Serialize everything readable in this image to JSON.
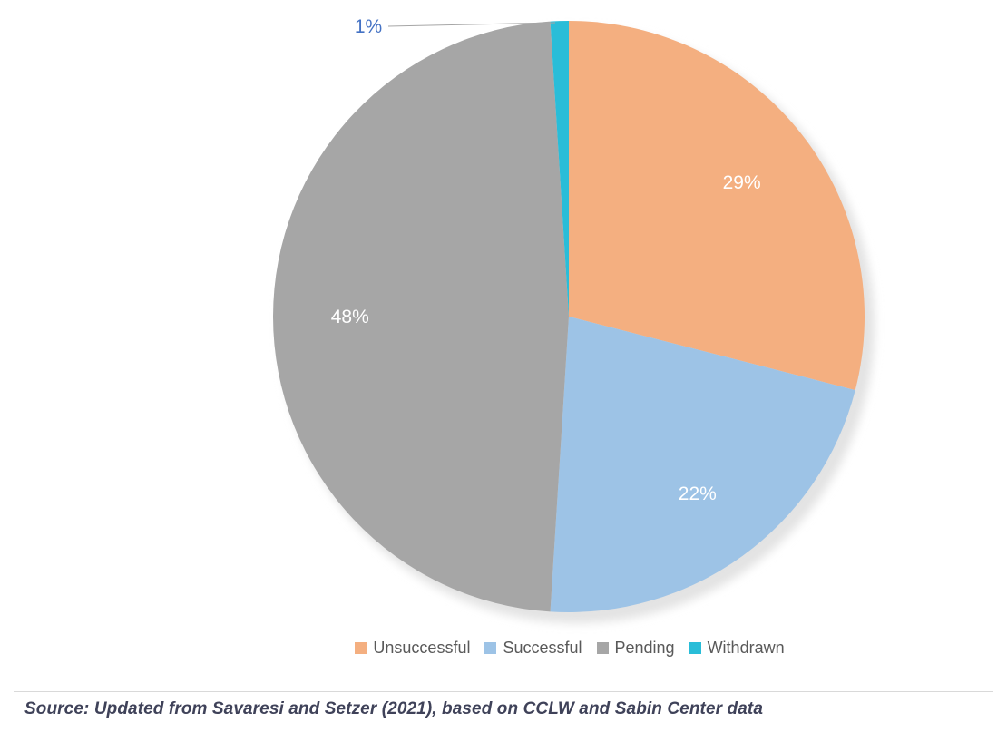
{
  "chart_data": {
    "type": "pie",
    "title": "",
    "direction": "clockwise",
    "start_angle_deg": 0,
    "legend_position": "bottom",
    "grid": false,
    "series": [
      {
        "label": "Unsuccessful",
        "value": 29,
        "display": "29%",
        "color": "#F4AF80",
        "label_placement": "inside"
      },
      {
        "label": "Successful",
        "value": 22,
        "display": "22%",
        "color": "#9DC3E6",
        "label_placement": "inside"
      },
      {
        "label": "Pending",
        "value": 48,
        "display": "48%",
        "color": "#A6A6A6",
        "label_placement": "inside"
      },
      {
        "label": "Withdrawn",
        "value": 1,
        "display": "1%",
        "color": "#29BDD8",
        "label_placement": "outside"
      }
    ],
    "inside_label_color": "#FFFFFF",
    "outside_label_color": "#4472C4",
    "leader_line_color": "#A6A6A6",
    "legend_text_color": "#595959",
    "shadow_color": "#E3E3E3"
  },
  "source": {
    "text": "Source: Updated from Savaresi and Setzer (2021), based on CCLW and Sabin Center data"
  }
}
